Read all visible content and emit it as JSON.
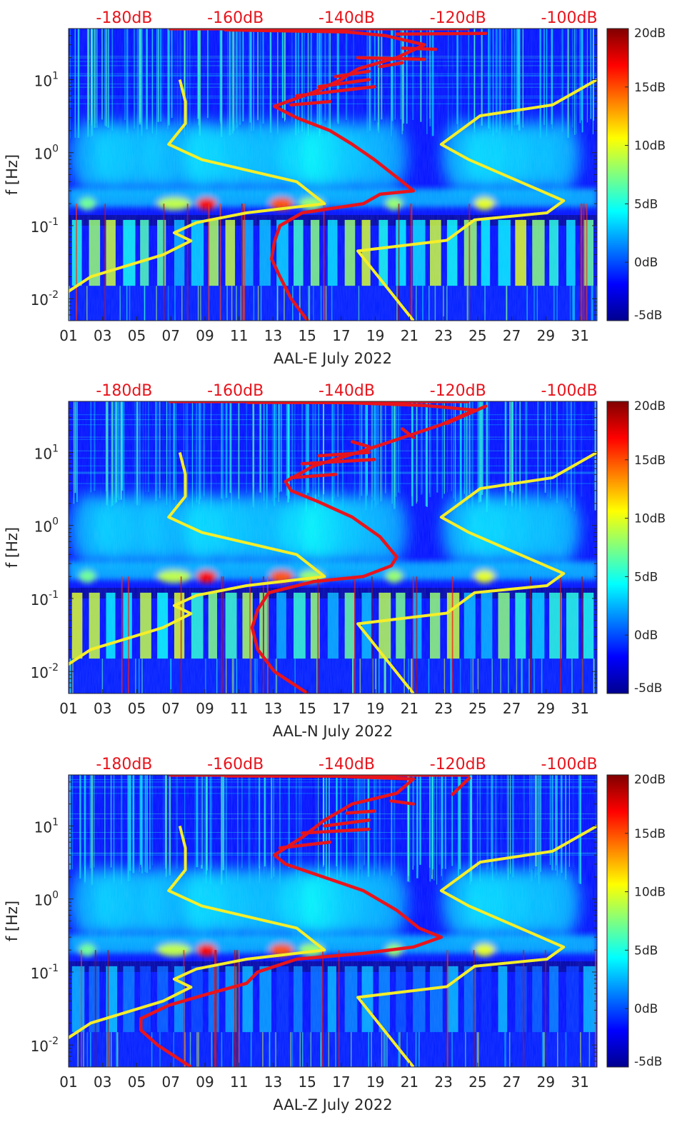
{
  "colors": {
    "spectrogram_low": "#00008f",
    "spectrogram_high": "#800000",
    "noise_model": "#f5ee2a",
    "median_psd": "#e8141c",
    "top_axis_text": "#e8141c",
    "axis_text": "#262626"
  },
  "colorbar": {
    "colormap": "jet",
    "range": [
      -5,
      20
    ],
    "tick_values": [
      20,
      15,
      10,
      5,
      0,
      -5
    ],
    "tick_labels": [
      "20dB",
      "15dB",
      "10dB",
      "5dB",
      "0dB",
      "-5dB"
    ]
  },
  "chart_data": [
    {
      "type": "heatmap",
      "xlabel": "AAL-E July 2022",
      "ylabel": "f [Hz]",
      "yscale": "log",
      "xlim": [
        1,
        32
      ],
      "ylim": [
        0.005,
        50
      ],
      "x_tick_labels": [
        "01",
        "03",
        "05",
        "07",
        "09",
        "11",
        "13",
        "15",
        "17",
        "19",
        "21",
        "23",
        "25",
        "27",
        "29",
        "31"
      ],
      "y_tick_labels": [
        "10^{-2}",
        "10^{-1}",
        "10^{0}",
        "10^{1}"
      ],
      "top_axis": {
        "unit": "dB",
        "xlim": [
          -190,
          -95
        ],
        "tick_labels": [
          "-180dB",
          "-160dB",
          "-140dB",
          "-120dB",
          "-100dB"
        ]
      },
      "series": [
        {
          "style": "noise-model-low",
          "points": [
            [
              -195,
              0.005
            ],
            [
              -192,
              0.01
            ],
            [
              -186,
              0.02
            ],
            [
              -173,
              0.04
            ],
            [
              -168,
              0.062
            ],
            [
              -171,
              0.08
            ],
            [
              -167,
              0.11
            ],
            [
              -158,
              0.15
            ],
            [
              -144,
              0.2
            ],
            [
              -149,
              0.4
            ],
            [
              -166,
              0.8
            ],
            [
              -172,
              1.3
            ],
            [
              -169,
              2.5
            ],
            [
              -169,
              5
            ],
            [
              -170,
              10
            ]
          ]
        },
        {
          "style": "noise-model-high",
          "points": [
            [
              -128,
              0.005
            ],
            [
              -138,
              0.045
            ],
            [
              -122,
              0.063
            ],
            [
              -117,
              0.12
            ],
            [
              -104,
              0.15
            ],
            [
              -101,
              0.22
            ],
            [
              -118,
              0.8
            ],
            [
              -123,
              1.3
            ],
            [
              -116,
              3.2
            ],
            [
              -103,
              4.5
            ],
            [
              -95,
              10
            ]
          ]
        },
        {
          "style": "median-psd",
          "points": [
            [
              -147,
              0.005
            ],
            [
              -150,
              0.01
            ],
            [
              -152,
              0.02
            ],
            [
              -153.5,
              0.035
            ],
            [
              -153,
              0.06
            ],
            [
              -152,
              0.1
            ],
            [
              -148,
              0.15
            ],
            [
              -137,
              0.2
            ],
            [
              -134,
              0.27
            ],
            [
              -128,
              0.3
            ],
            [
              -130,
              0.4
            ],
            [
              -135,
              0.8
            ],
            [
              -139,
              1.3
            ],
            [
              -143,
              2.0
            ],
            [
              -149,
              3.0
            ],
            [
              -153,
              4.3
            ],
            [
              -146,
              6.7
            ],
            [
              -141,
              10
            ],
            [
              -138,
              14
            ],
            [
              -131,
              20
            ],
            [
              -126,
              30
            ],
            [
              -133,
              40
            ],
            [
              -140,
              45
            ],
            [
              -162,
              48
            ]
          ]
        },
        {
          "style": "median-psd-branches",
          "points": [
            [
              -150,
              4.5
            ],
            [
              -143,
              5
            ],
            [
              -135,
              8
            ],
            [
              -149,
              6
            ],
            [
              -136,
              10
            ],
            [
              -145,
              8
            ],
            [
              -136,
              13
            ],
            [
              -142,
              11
            ],
            [
              -130,
              17
            ],
            [
              -134,
              15
            ],
            [
              -126,
              19
            ],
            [
              -138,
              20
            ],
            [
              -124,
              26
            ],
            [
              -130,
              27
            ],
            [
              -115,
              43
            ],
            [
              -131,
              42
            ]
          ]
        }
      ]
    },
    {
      "type": "heatmap",
      "xlabel": "AAL-N July 2022",
      "ylabel": "f [Hz]",
      "yscale": "log",
      "xlim": [
        1,
        32
      ],
      "ylim": [
        0.005,
        50
      ],
      "x_tick_labels": [
        "01",
        "03",
        "05",
        "07",
        "09",
        "11",
        "13",
        "15",
        "17",
        "19",
        "21",
        "23",
        "25",
        "27",
        "29",
        "31"
      ],
      "y_tick_labels": [
        "10^{-2}",
        "10^{-1}",
        "10^{0}",
        "10^{1}"
      ],
      "top_axis": {
        "unit": "dB",
        "xlim": [
          -190,
          -95
        ],
        "tick_labels": [
          "-180dB",
          "-160dB",
          "-140dB",
          "-120dB",
          "-100dB"
        ]
      },
      "series": [
        {
          "style": "noise-model-low",
          "points": [
            [
              -195,
              0.005
            ],
            [
              -192,
              0.01
            ],
            [
              -186,
              0.02
            ],
            [
              -173,
              0.04
            ],
            [
              -168,
              0.062
            ],
            [
              -171,
              0.08
            ],
            [
              -167,
              0.11
            ],
            [
              -158,
              0.15
            ],
            [
              -144,
              0.2
            ],
            [
              -149,
              0.4
            ],
            [
              -166,
              0.8
            ],
            [
              -172,
              1.3
            ],
            [
              -169,
              2.5
            ],
            [
              -169,
              5
            ],
            [
              -170,
              10
            ]
          ]
        },
        {
          "style": "noise-model-high",
          "points": [
            [
              -128,
              0.005
            ],
            [
              -138,
              0.045
            ],
            [
              -122,
              0.063
            ],
            [
              -117,
              0.12
            ],
            [
              -104,
              0.15
            ],
            [
              -101,
              0.22
            ],
            [
              -118,
              0.8
            ],
            [
              -123,
              1.3
            ],
            [
              -116,
              3.2
            ],
            [
              -103,
              4.5
            ],
            [
              -95,
              10
            ]
          ]
        },
        {
          "style": "median-psd",
          "points": [
            [
              -147,
              0.005
            ],
            [
              -153,
              0.01
            ],
            [
              -156,
              0.02
            ],
            [
              -157,
              0.04
            ],
            [
              -156,
              0.07
            ],
            [
              -154,
              0.12
            ],
            [
              -146,
              0.17
            ],
            [
              -137,
              0.2
            ],
            [
              -132,
              0.28
            ],
            [
              -131,
              0.37
            ],
            [
              -134,
              0.7
            ],
            [
              -139,
              1.3
            ],
            [
              -145,
              2.1
            ],
            [
              -150,
              3.0
            ],
            [
              -151,
              4.0
            ],
            [
              -146,
              6.5
            ],
            [
              -138,
              10
            ],
            [
              -131,
              15
            ],
            [
              -123,
              24
            ],
            [
              -117,
              38
            ],
            [
              -126,
              44
            ],
            [
              -140,
              48
            ],
            [
              -158,
              48.5
            ]
          ]
        },
        {
          "style": "median-psd-branches",
          "points": [
            [
              -150,
              4.5
            ],
            [
              -142,
              5
            ],
            [
              -135,
              8
            ],
            [
              -148,
              7
            ],
            [
              -136,
              10
            ],
            [
              -145,
              9
            ],
            [
              -136,
              12
            ],
            [
              -139,
              14
            ],
            [
              -128,
              16
            ],
            [
              -130,
              21
            ],
            [
              -122,
              25
            ],
            [
              -115,
              43
            ],
            [
              -131,
              42
            ]
          ]
        }
      ]
    },
    {
      "type": "heatmap",
      "xlabel": "AAL-Z July 2022",
      "ylabel": "f [Hz]",
      "yscale": "log",
      "xlim": [
        1,
        32
      ],
      "ylim": [
        0.005,
        50
      ],
      "x_tick_labels": [
        "01",
        "03",
        "05",
        "07",
        "09",
        "11",
        "13",
        "15",
        "17",
        "19",
        "21",
        "23",
        "25",
        "27",
        "29",
        "31"
      ],
      "y_tick_labels": [
        "10^{-2}",
        "10^{-1}",
        "10^{0}",
        "10^{1}"
      ],
      "top_axis": {
        "unit": "dB",
        "xlim": [
          -190,
          -95
        ],
        "tick_labels": [
          "-180dB",
          "-160dB",
          "-140dB",
          "-120dB",
          "-100dB"
        ]
      },
      "series": [
        {
          "style": "noise-model-low",
          "points": [
            [
              -195,
              0.005
            ],
            [
              -192,
              0.01
            ],
            [
              -186,
              0.02
            ],
            [
              -173,
              0.04
            ],
            [
              -168,
              0.062
            ],
            [
              -171,
              0.08
            ],
            [
              -167,
              0.11
            ],
            [
              -158,
              0.15
            ],
            [
              -144,
              0.2
            ],
            [
              -149,
              0.4
            ],
            [
              -166,
              0.8
            ],
            [
              -172,
              1.3
            ],
            [
              -169,
              2.5
            ],
            [
              -169,
              5
            ],
            [
              -170,
              10
            ]
          ]
        },
        {
          "style": "noise-model-high",
          "points": [
            [
              -128,
              0.005
            ],
            [
              -138,
              0.045
            ],
            [
              -122,
              0.063
            ],
            [
              -117,
              0.12
            ],
            [
              -104,
              0.15
            ],
            [
              -101,
              0.22
            ],
            [
              -118,
              0.8
            ],
            [
              -123,
              1.3
            ],
            [
              -116,
              3.2
            ],
            [
              -103,
              4.5
            ],
            [
              -95,
              10
            ]
          ]
        },
        {
          "style": "median-psd",
          "points": [
            [
              -168,
              0.005
            ],
            [
              -174,
              0.01
            ],
            [
              -177,
              0.016
            ],
            [
              -177,
              0.023
            ],
            [
              -172,
              0.035
            ],
            [
              -165,
              0.05
            ],
            [
              -158,
              0.07
            ],
            [
              -156,
              0.1
            ],
            [
              -149,
              0.15
            ],
            [
              -137,
              0.18
            ],
            [
              -128,
              0.22
            ],
            [
              -123,
              0.3
            ],
            [
              -127,
              0.4
            ],
            [
              -131,
              0.7
            ],
            [
              -137,
              1.3
            ],
            [
              -145,
              2.1
            ],
            [
              -151,
              3.0
            ],
            [
              -153,
              4.0
            ],
            [
              -148,
              7
            ],
            [
              -144,
              12
            ],
            [
              -139,
              20
            ],
            [
              -131,
              28
            ],
            [
              -129,
              38
            ],
            [
              -128,
              44
            ],
            [
              -142,
              48
            ],
            [
              -162,
              48.5
            ]
          ]
        },
        {
          "style": "median-psd-branches",
          "points": [
            [
              -152,
              5
            ],
            [
              -143,
              6
            ],
            [
              -136,
              9
            ],
            [
              -148,
              8
            ],
            [
              -136,
              12
            ],
            [
              -144,
              10
            ],
            [
              -135,
              16
            ],
            [
              -140,
              15
            ],
            [
              -128,
              20
            ],
            [
              -132,
              22
            ],
            [
              -121,
              27
            ],
            [
              -118,
              45
            ],
            [
              -131,
              42
            ]
          ]
        }
      ]
    }
  ]
}
